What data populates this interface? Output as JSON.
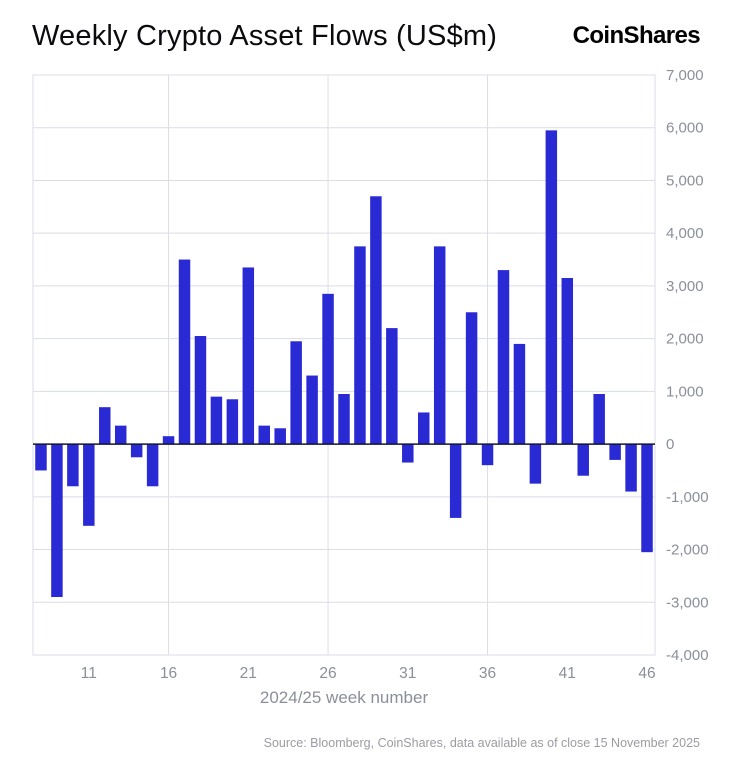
{
  "header": {
    "title": "Weekly Crypto Asset Flows (US$m)",
    "logo": "CoinShares"
  },
  "chart_data": {
    "type": "bar",
    "title": "Weekly Crypto Asset Flows (US$m)",
    "xlabel": "2024/25 week number",
    "ylabel": "",
    "weeks": [
      8,
      9,
      10,
      11,
      12,
      13,
      14,
      15,
      16,
      17,
      18,
      19,
      20,
      21,
      22,
      23,
      24,
      25,
      26,
      27,
      28,
      29,
      30,
      31,
      32,
      33,
      34,
      35,
      36,
      37,
      38,
      39,
      40,
      41,
      42,
      43,
      44,
      45,
      46
    ],
    "values": [
      -500,
      -2900,
      -800,
      -1550,
      700,
      350,
      -250,
      -800,
      150,
      3500,
      2050,
      900,
      850,
      3350,
      350,
      300,
      1950,
      1300,
      2850,
      950,
      3750,
      4700,
      2200,
      -350,
      600,
      3750,
      -1400,
      2500,
      -400,
      3300,
      1900,
      -750,
      5950,
      3150,
      -600,
      950,
      -300,
      -900,
      -2050
    ],
    "ylim": [
      -4000,
      7000
    ],
    "ytick_step": 1000,
    "xticks": [
      11,
      16,
      21,
      26,
      31,
      36,
      41,
      46
    ],
    "vertical_gridline_weeks": [
      16,
      26,
      36
    ],
    "bar_color": "#2a2ad4",
    "grid_color": "#dadee5",
    "zero_line_color": "#15152e",
    "tick_label_color": "#8b8f99",
    "grid": "on",
    "legend": "none",
    "yaxis_side": "right"
  },
  "footer": {
    "source": "Source: Bloomberg, CoinShares, data available as of close 15 November 2025"
  }
}
